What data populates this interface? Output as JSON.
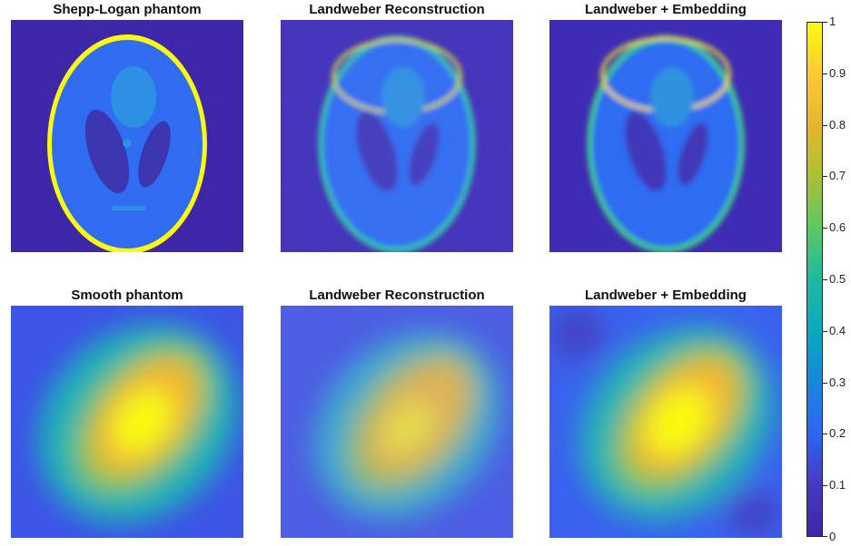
{
  "panels": [
    {
      "title": "Shepp-Logan phantom"
    },
    {
      "title": "Landweber Reconstruction"
    },
    {
      "title": "Landweber + Embedding"
    },
    {
      "title": "Smooth phantom"
    },
    {
      "title": "Landweber Reconstruction"
    },
    {
      "title": "Landweber + Embedding"
    }
  ],
  "colorbar": {
    "colormap": "parula",
    "range": [
      0,
      1
    ],
    "ticks": [
      "1",
      "0.9",
      "0.8",
      "0.7",
      "0.6",
      "0.5",
      "0.4",
      "0.3",
      "0.2",
      "0.1",
      "0"
    ],
    "colors": [
      "#f9fb0e",
      "#fec934",
      "#e5b52e",
      "#aac135",
      "#5cc863",
      "#1fb9a0",
      "#09a9c1",
      "#1787db",
      "#2d65f0",
      "#4739c0",
      "#3e26a8"
    ]
  }
}
